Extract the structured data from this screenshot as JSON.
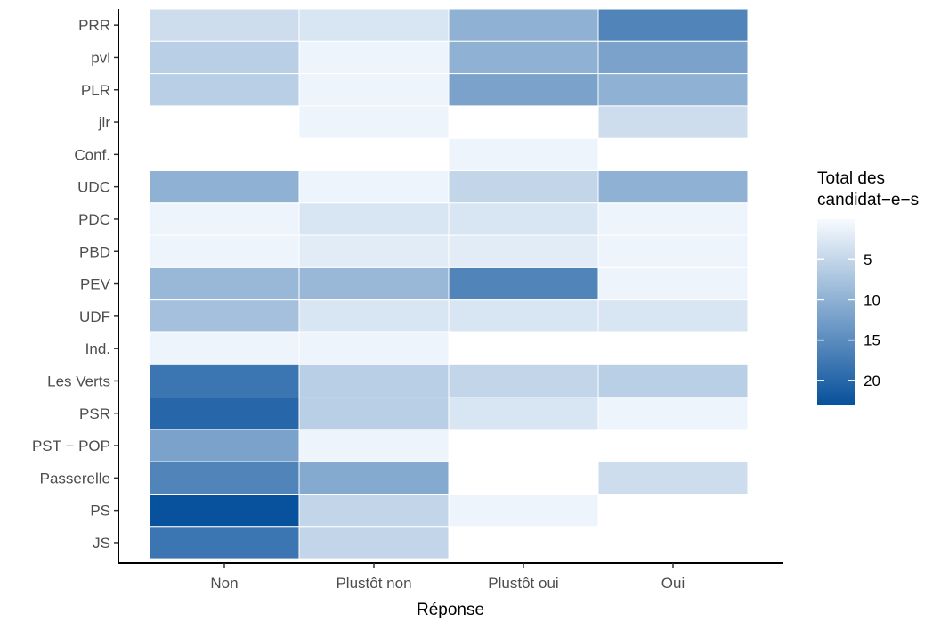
{
  "chart_data": {
    "type": "heatmap",
    "title": "",
    "xlabel": "Réponse",
    "ylabel": "",
    "x_categories": [
      "Non",
      "Plustôt non",
      "Plustôt oui",
      "Oui"
    ],
    "y_categories": [
      "PRR",
      "pvl",
      "PLR",
      "jlr",
      "Conf.",
      "UDC",
      "PDC",
      "PBD",
      "PEV",
      "UDF",
      "Ind.",
      "Les Verts",
      "PSR",
      "PST − POP",
      "Passerelle",
      "PS",
      "JS"
    ],
    "values": [
      [
        4,
        3,
        10,
        16
      ],
      [
        6,
        1,
        10,
        12
      ],
      [
        6,
        1,
        12,
        10
      ],
      [
        null,
        1,
        null,
        4
      ],
      [
        null,
        null,
        1,
        null
      ],
      [
        10,
        1,
        5,
        10
      ],
      [
        1,
        3,
        3,
        1
      ],
      [
        1,
        2,
        2,
        1
      ],
      [
        9,
        9,
        16,
        1
      ],
      [
        8,
        3,
        3,
        3
      ],
      [
        1,
        1,
        null,
        null
      ],
      [
        18,
        6,
        5,
        6
      ],
      [
        20,
        6,
        3,
        1
      ],
      [
        12,
        1,
        null,
        null
      ],
      [
        16,
        11,
        null,
        4
      ],
      [
        23,
        5,
        1,
        null
      ],
      [
        18,
        5,
        null,
        null
      ]
    ],
    "color_scale": {
      "title": "Total des\ncandidat−e−s",
      "low_value": 0,
      "high_value": 23,
      "low_color": "#f7fbff",
      "high_color": "#08519c",
      "breaks": [
        5,
        10,
        15,
        20
      ],
      "break_labels": [
        "5",
        "10",
        "15",
        "20"
      ]
    },
    "legend_position": "right",
    "grid": false
  }
}
